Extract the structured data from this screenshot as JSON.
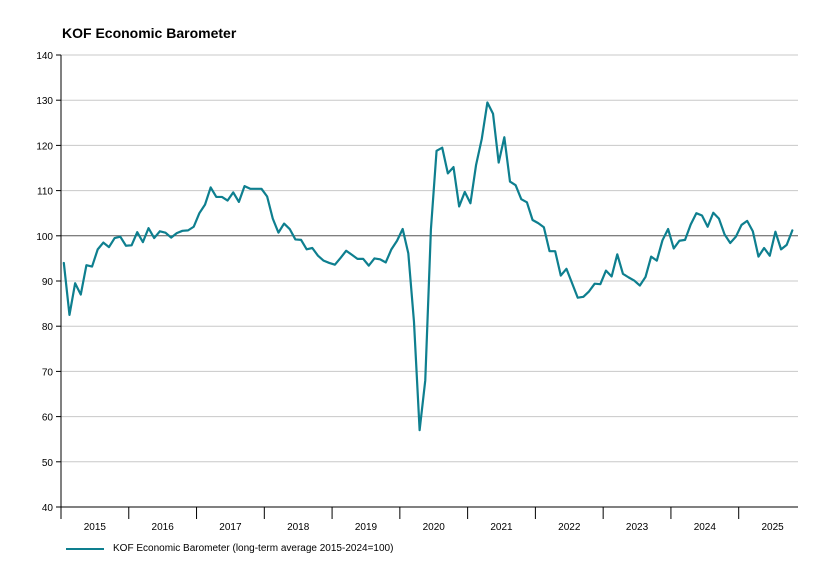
{
  "chart_data": {
    "type": "line",
    "title": "KOF Economic Barometer",
    "xlabel": "",
    "ylabel": "",
    "ylim": [
      40,
      140
    ],
    "yticks": [
      40,
      50,
      60,
      70,
      80,
      90,
      100,
      110,
      120,
      130,
      140
    ],
    "xlim": [
      2015.0,
      2025.875
    ],
    "year_labels": [
      "2015",
      "2016",
      "2017",
      "2018",
      "2019",
      "2020",
      "2021",
      "2022",
      "2023",
      "2024",
      "2025"
    ],
    "reference_line": 100,
    "grid": "horizontal",
    "legend_position": "bottom-left",
    "series": [
      {
        "name": "KOF Economic Barometer (long-term average 2015-2024=100)",
        "color": "#0e7f8f",
        "start": "2015-01",
        "frequency": "monthly",
        "values": [
          94.0,
          82.5,
          89.5,
          87.0,
          93.5,
          93.2,
          97.0,
          98.5,
          97.5,
          99.5,
          99.8,
          97.8,
          97.9,
          100.8,
          98.6,
          101.7,
          99.5,
          101.0,
          100.7,
          99.6,
          100.6,
          101.1,
          101.2,
          102.0,
          105.0,
          106.9,
          110.7,
          108.6,
          108.6,
          107.8,
          109.6,
          107.5,
          111.0,
          110.4,
          110.4,
          110.4,
          108.7,
          103.8,
          100.7,
          102.7,
          101.5,
          99.2,
          99.1,
          97.0,
          97.3,
          95.6,
          94.5,
          94.0,
          93.6,
          95.1,
          96.7,
          95.8,
          94.9,
          94.9,
          93.4,
          95.0,
          94.8,
          94.1,
          97.0,
          98.9,
          101.5,
          96.1,
          81.0,
          57.0,
          68.0,
          101.4,
          118.8,
          119.5,
          113.8,
          115.2,
          106.5,
          109.7,
          107.2,
          115.7,
          121.4,
          129.5,
          127.0,
          116.2,
          121.8,
          112.0,
          111.2,
          108.1,
          107.4,
          103.5,
          102.8,
          101.9,
          96.6,
          96.6,
          91.2,
          92.7,
          89.5,
          86.3,
          86.5,
          87.7,
          89.4,
          89.3,
          92.3,
          91.0,
          95.9,
          91.6,
          90.8,
          90.1,
          89.0,
          90.9,
          95.4,
          94.5,
          99.0,
          101.5,
          97.2,
          98.9,
          99.1,
          102.5,
          105.0,
          104.5,
          102.0,
          105.1,
          103.8,
          100.3,
          98.4,
          99.8,
          102.4,
          103.3,
          101.0,
          95.4,
          97.3,
          95.6,
          100.9,
          97.0,
          98.0,
          101.2
        ]
      }
    ]
  }
}
